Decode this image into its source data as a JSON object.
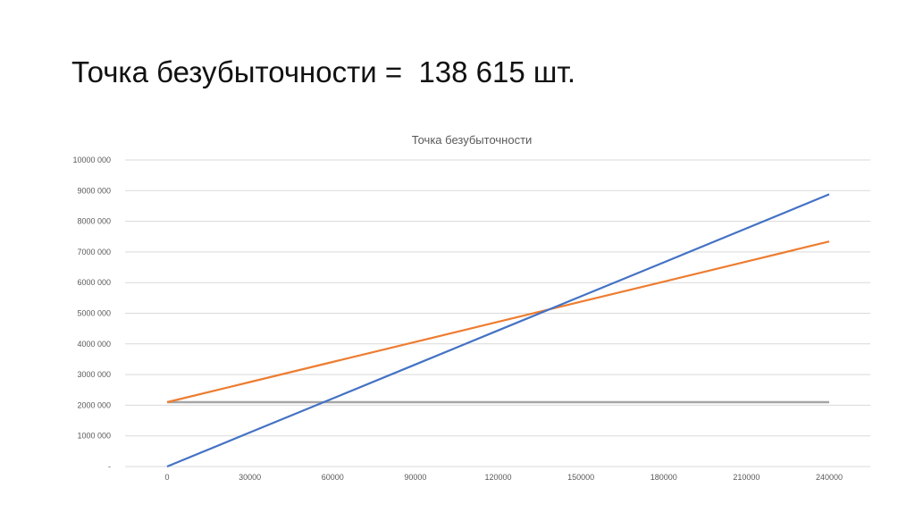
{
  "slide": {
    "title": "Точка безубыточности =  138 615 шт."
  },
  "chart_data": {
    "type": "line",
    "title": "Точка безубыточности",
    "xlabel": "",
    "ylabel": "",
    "x": [
      0,
      30000,
      60000,
      90000,
      120000,
      150000,
      180000,
      210000,
      240000
    ],
    "x_tick_labels": [
      "0",
      "30000",
      "60000",
      "90000",
      "120000",
      "150000",
      "180000",
      "210000",
      "240000"
    ],
    "y_tick_labels": [
      "-",
      "1000 000",
      "2000 000",
      "3000 000",
      "4000 000",
      "5000 000",
      "6000 000",
      "7000 000",
      "8000 000",
      "9000 000",
      "10000 000"
    ],
    "y_ticks": [
      0,
      1000000,
      2000000,
      3000000,
      4000000,
      5000000,
      6000000,
      7000000,
      8000000,
      9000000,
      10000000
    ],
    "ylim": [
      0,
      10000000
    ],
    "grid": true,
    "legend": "none",
    "series": [
      {
        "color": "#4472C4",
        "values": [
          0,
          1110000,
          2220000,
          3330000,
          4440000,
          5550000,
          6660000,
          7770000,
          8880000
        ]
      },
      {
        "color": "#ED7D31",
        "values": [
          2100000,
          2755000,
          3410000,
          4065000,
          4720000,
          5375000,
          6030000,
          6685000,
          7340000
        ]
      },
      {
        "color": "#A5A5A5",
        "values": [
          2100000,
          2100000,
          2100000,
          2100000,
          2100000,
          2100000,
          2100000,
          2100000,
          2100000
        ]
      }
    ]
  }
}
